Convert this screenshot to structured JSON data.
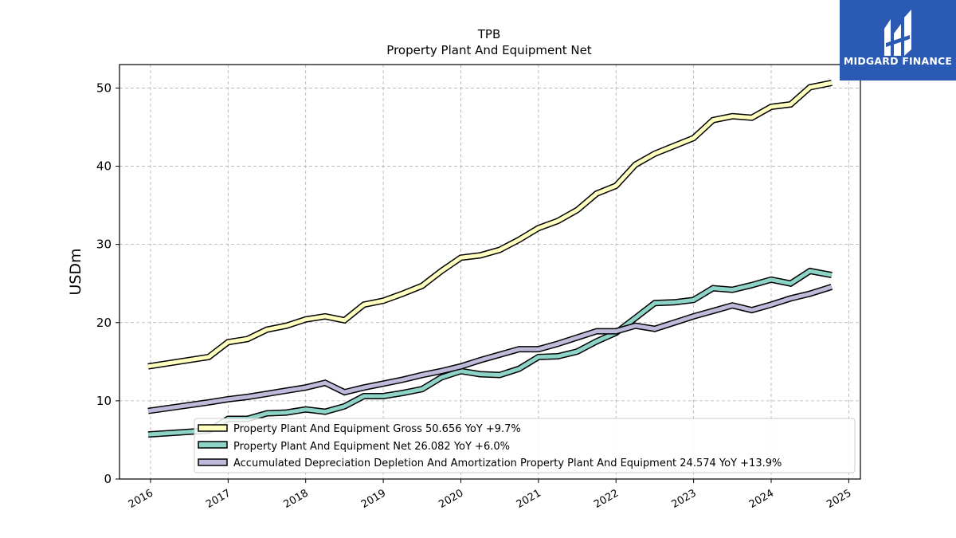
{
  "colors": {
    "gross": "#ffffbf",
    "net": "#8dd3c7",
    "accumulated": "#bebada",
    "outline": "#000000",
    "grid": "#b0b0b0",
    "brand_bg": "#2a5ab3"
  },
  "brand": {
    "name": "MIDGARD FINANCE",
    "icon": "midgard-logo-icon"
  },
  "chart_data": {
    "type": "line",
    "title": "TPB",
    "subtitle": "Property Plant And Equipment Net",
    "xlabel": "",
    "ylabel": "USDm",
    "xlim": [
      2015.6,
      2025.15
    ],
    "ylim": [
      0,
      53
    ],
    "grid": true,
    "legend_position": "lower-right",
    "x_ticks": [
      2016,
      2017,
      2018,
      2019,
      2020,
      2021,
      2022,
      2023,
      2024,
      2025
    ],
    "x_tick_labels": [
      "2016",
      "2017",
      "2018",
      "2019",
      "2020",
      "2021",
      "2022",
      "2023",
      "2024",
      "2025"
    ],
    "y_ticks": [
      0,
      10,
      20,
      30,
      40,
      50
    ],
    "y_tick_labels": [
      "0",
      "10",
      "20",
      "30",
      "40",
      "50"
    ],
    "series": [
      {
        "key": "gross",
        "name": "Property Plant And Equipment Gross  50.656 YoY +9.7%",
        "x": [
          2015.97,
          2016.75,
          2017.0,
          2017.25,
          2017.5,
          2017.75,
          2018.0,
          2018.25,
          2018.5,
          2018.75,
          2019.0,
          2019.25,
          2019.5,
          2019.75,
          2020.0,
          2020.25,
          2020.5,
          2020.75,
          2021.0,
          2021.25,
          2021.5,
          2021.75,
          2022.0,
          2022.25,
          2022.5,
          2022.75,
          2023.0,
          2023.25,
          2023.5,
          2023.75,
          2024.0,
          2024.25,
          2024.5,
          2024.78
        ],
        "y": [
          14.4,
          15.6,
          17.5,
          17.9,
          19.1,
          19.6,
          20.4,
          20.8,
          20.3,
          22.3,
          22.8,
          23.7,
          24.7,
          26.6,
          28.3,
          28.6,
          29.3,
          30.6,
          32.1,
          33.0,
          34.4,
          36.5,
          37.5,
          40.2,
          41.6,
          42.6,
          43.6,
          45.9,
          46.4,
          46.2,
          47.6,
          47.9,
          50.1,
          50.656
        ]
      },
      {
        "key": "net",
        "name": "Property Plant And Equipment Net  26.082 YoY +6.0%",
        "x": [
          2015.97,
          2016.75,
          2017.0,
          2017.25,
          2017.5,
          2017.75,
          2018.0,
          2018.25,
          2018.5,
          2018.75,
          2019.0,
          2019.25,
          2019.5,
          2019.75,
          2020.0,
          2020.25,
          2020.5,
          2020.75,
          2021.0,
          2021.25,
          2021.5,
          2021.75,
          2022.0,
          2022.25,
          2022.5,
          2022.75,
          2023.0,
          2023.25,
          2023.5,
          2023.75,
          2024.0,
          2024.25,
          2024.5,
          2024.78
        ],
        "y": [
          5.7,
          6.2,
          7.7,
          7.7,
          8.4,
          8.5,
          8.9,
          8.6,
          9.3,
          10.6,
          10.6,
          11.0,
          11.5,
          13.0,
          13.8,
          13.4,
          13.3,
          14.1,
          15.6,
          15.7,
          16.3,
          17.6,
          18.7,
          20.6,
          22.5,
          22.6,
          22.9,
          24.4,
          24.2,
          24.8,
          25.5,
          25.0,
          26.6,
          26.082
        ]
      },
      {
        "key": "accumulated",
        "name": "Accumulated Depreciation Depletion And Amortization Property Plant And Equipment  24.574 YoY +13.9%",
        "x": [
          2015.97,
          2016.75,
          2017.0,
          2017.25,
          2017.5,
          2017.75,
          2018.0,
          2018.25,
          2018.5,
          2018.75,
          2019.0,
          2019.25,
          2019.5,
          2019.75,
          2020.0,
          2020.25,
          2020.5,
          2020.75,
          2021.0,
          2021.25,
          2021.5,
          2021.75,
          2022.0,
          2022.25,
          2022.5,
          2022.75,
          2023.0,
          2023.25,
          2023.5,
          2023.75,
          2024.0,
          2024.25,
          2024.5,
          2024.78
        ],
        "y": [
          8.7,
          9.8,
          10.2,
          10.5,
          10.9,
          11.3,
          11.7,
          12.3,
          11.1,
          11.7,
          12.2,
          12.7,
          13.3,
          13.8,
          14.4,
          15.2,
          15.9,
          16.6,
          16.6,
          17.3,
          18.1,
          18.9,
          18.9,
          19.6,
          19.2,
          20.0,
          20.8,
          21.5,
          22.2,
          21.6,
          22.3,
          23.1,
          23.7,
          24.574
        ]
      }
    ]
  }
}
